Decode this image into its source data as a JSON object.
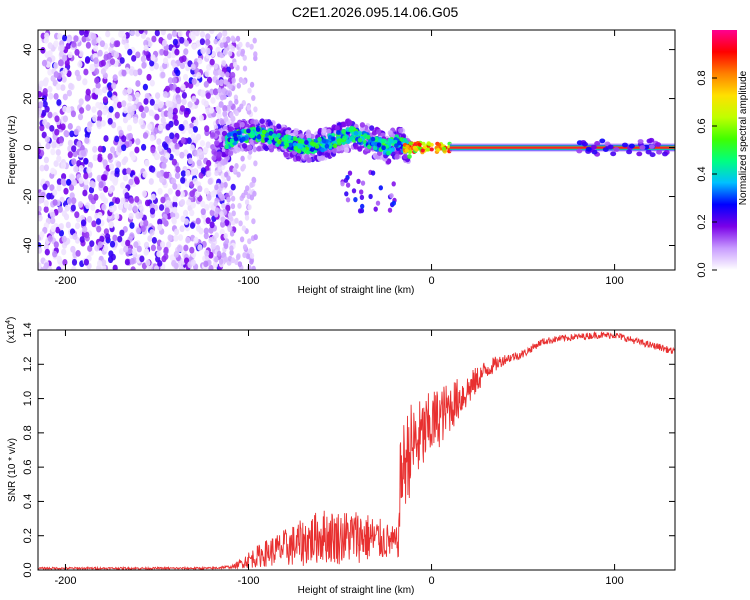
{
  "title": "C2E1.2026.095.14.06.G05",
  "chart_data": [
    {
      "type": "heatmap",
      "name": "spectrogram",
      "xlabel": "Height of straight line (km)",
      "ylabel": "Frequency (Hz)",
      "xlim": [
        -215,
        133
      ],
      "ylim": [
        -50,
        48
      ],
      "xticks": [
        -200,
        -100,
        0,
        100
      ],
      "yticks": [
        -40,
        -20,
        0,
        20,
        40
      ],
      "colorbar": {
        "label": "Normalized spectral amplitude",
        "range": [
          0,
          1
        ],
        "ticks": [
          0.0,
          0.2,
          0.4,
          0.6,
          0.8
        ],
        "colormap": [
          "#ffffff",
          "#c89bff",
          "#7a00e8",
          "#0000ff",
          "#00c0ff",
          "#00ff80",
          "#40ff00",
          "#c0ff00",
          "#ffe000",
          "#ff8000",
          "#ff0000",
          "#ff0090"
        ]
      },
      "regions": [
        {
          "x_range": [
            -215,
            -108
          ],
          "freq_range": [
            -50,
            48
          ],
          "amplitude": [
            0.02,
            0.25
          ],
          "description": "noise"
        },
        {
          "x_range": [
            -120,
            -15
          ],
          "freq_range": [
            -5,
            12
          ],
          "amplitude": [
            0.2,
            0.45
          ]
        },
        {
          "x_range": [
            -15,
            10
          ],
          "freq_range": [
            -2,
            4
          ],
          "amplitude": [
            0.3,
            0.95
          ]
        },
        {
          "x_range": [
            10,
            133
          ],
          "freq_range": [
            -1,
            1
          ],
          "amplitude": [
            0.6,
            0.9
          ]
        }
      ]
    },
    {
      "type": "line",
      "name": "snr",
      "xlabel": "Height of straight line (km)",
      "ylabel": "SNR (10 * v/v)",
      "yscale_label": "(x10",
      "yscale_exp": "4",
      "xlim": [
        -215,
        133
      ],
      "ylim": [
        0,
        1.4
      ],
      "xticks": [
        -200,
        -100,
        0,
        100
      ],
      "yticks": [
        0.0,
        0.2,
        0.4,
        0.6,
        0.8,
        1.0,
        1.2,
        1.4
      ],
      "line_color": "#e83030",
      "envelope": {
        "x": [
          -215,
          -120,
          -108,
          -100,
          -90,
          -80,
          -70,
          -60,
          -50,
          -40,
          -30,
          -20,
          -18,
          -17,
          -12,
          -5,
          0,
          10,
          20,
          30,
          40,
          50,
          60,
          70,
          80,
          90,
          100,
          110,
          120,
          125,
          133
        ],
        "mean": [
          0.01,
          0.01,
          0.02,
          0.06,
          0.1,
          0.13,
          0.16,
          0.2,
          0.19,
          0.2,
          0.18,
          0.16,
          0.16,
          0.55,
          0.7,
          0.78,
          0.85,
          0.95,
          1.05,
          1.17,
          1.23,
          1.26,
          1.33,
          1.35,
          1.36,
          1.37,
          1.37,
          1.34,
          1.31,
          1.3,
          1.27
        ],
        "spread": [
          0.006,
          0.006,
          0.01,
          0.05,
          0.08,
          0.11,
          0.14,
          0.16,
          0.16,
          0.16,
          0.13,
          0.09,
          0.09,
          0.26,
          0.28,
          0.22,
          0.2,
          0.15,
          0.1,
          0.06,
          0.03,
          0.025,
          0.02,
          0.02,
          0.02,
          0.02,
          0.02,
          0.02,
          0.02,
          0.02,
          0.02
        ]
      }
    }
  ]
}
